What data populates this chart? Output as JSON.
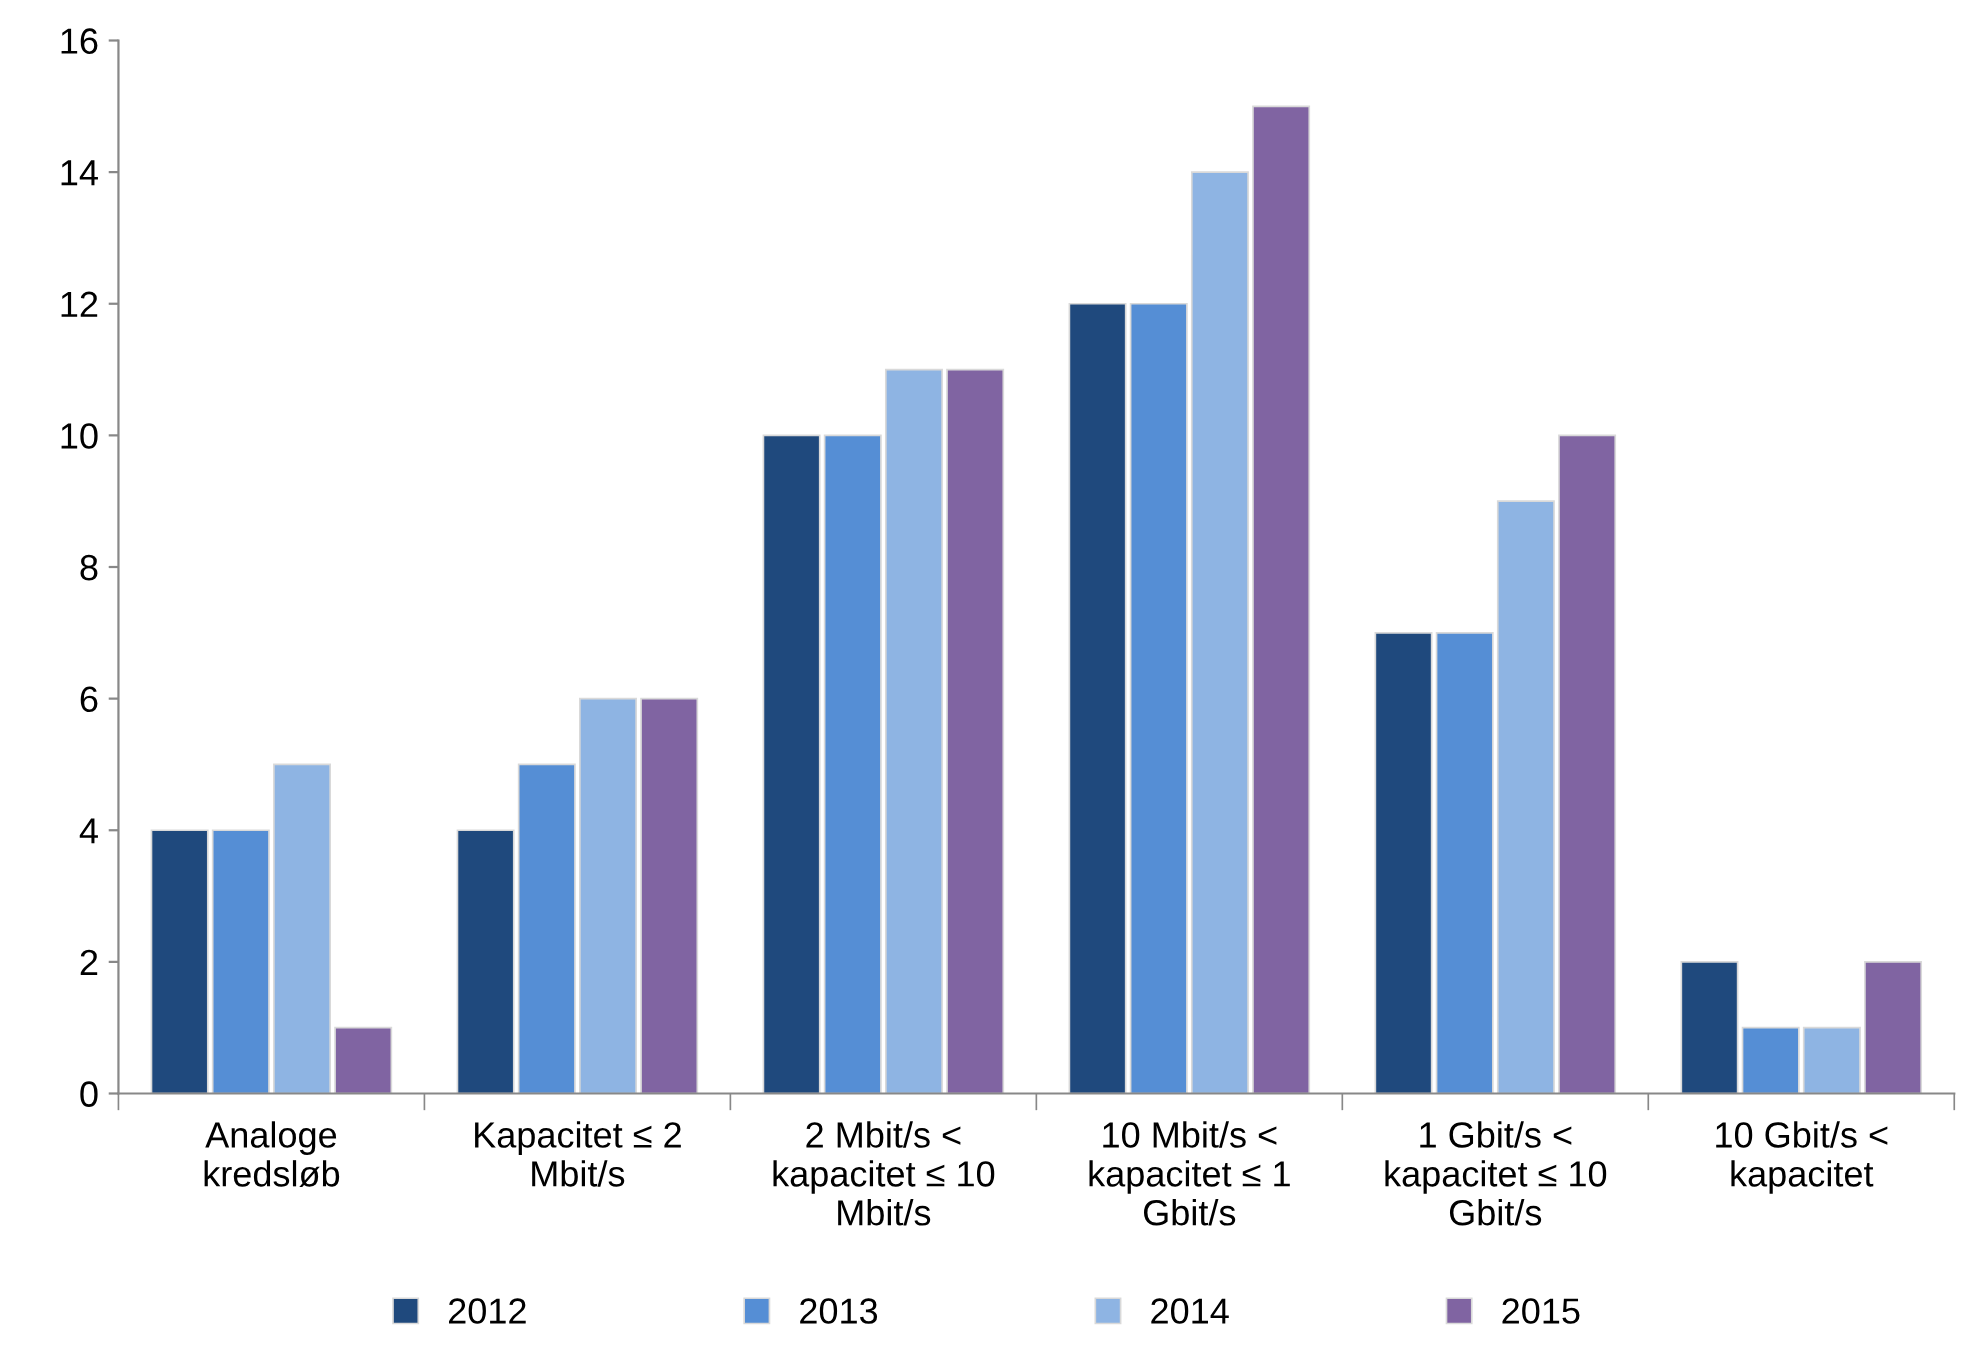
{
  "chart_data": {
    "type": "bar",
    "categories": [
      "Analoge\nkredsløb",
      "Kapacitet ≤ 2\nMbit/s",
      "2 Mbit/s <\nkapacitet ≤ 10\nMbit/s",
      "10 Mbit/s <\nkapacitet ≤ 1\nGbit/s",
      "1 Gbit/s <\nkapacitet ≤ 10\nGbit/s",
      "10 Gbit/s <\nkapacitet"
    ],
    "series": [
      {
        "name": "2012",
        "color": "#1f497d",
        "values": [
          4,
          4,
          10,
          12,
          7,
          2
        ]
      },
      {
        "name": "2013",
        "color": "#558ed5",
        "values": [
          4,
          5,
          10,
          12,
          7,
          1
        ]
      },
      {
        "name": "2014",
        "color": "#8eb4e3",
        "values": [
          5,
          6,
          11,
          14,
          9,
          1
        ]
      },
      {
        "name": "2015",
        "color": "#8064a2",
        "values": [
          1,
          6,
          11,
          15,
          10,
          2
        ]
      }
    ],
    "ylim": [
      0,
      16
    ],
    "yticks": [
      0,
      2,
      4,
      6,
      8,
      10,
      12,
      14,
      16
    ],
    "grid": false,
    "legend": "bottom"
  }
}
